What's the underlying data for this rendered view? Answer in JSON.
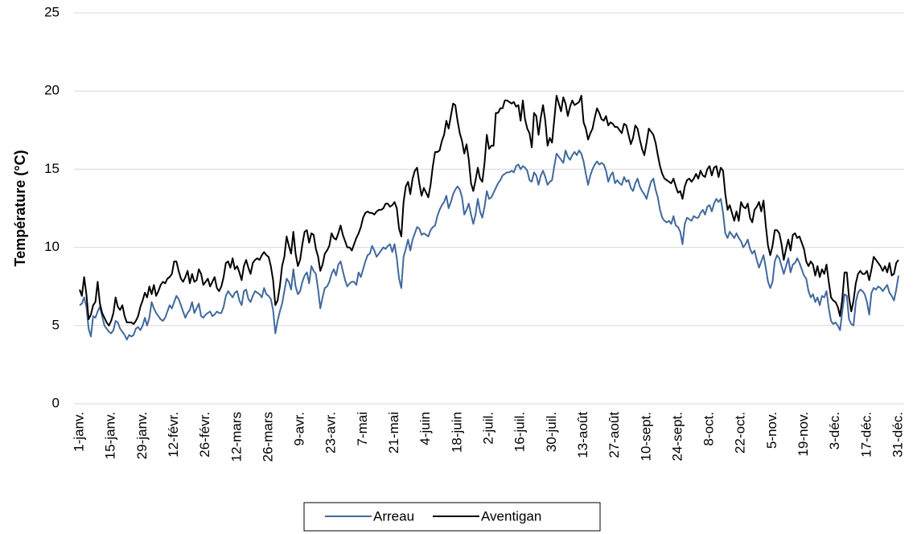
{
  "chart_data": {
    "type": "line",
    "y_label": "Température (°C)",
    "ylim": [
      0,
      25
    ],
    "yticks": [
      0,
      5,
      10,
      15,
      20,
      25
    ],
    "grid": true,
    "legend": "bottom",
    "categories": [
      "1-janv.",
      null,
      null,
      null,
      null,
      null,
      null,
      null,
      null,
      null,
      null,
      null,
      null,
      null,
      "15-janv.",
      null,
      null,
      null,
      null,
      null,
      null,
      null,
      null,
      null,
      null,
      null,
      null,
      null,
      "29-janv.",
      null,
      null,
      null,
      null,
      null,
      null,
      null,
      null,
      null,
      null,
      null,
      null,
      null,
      "12-févr.",
      null,
      null,
      null,
      null,
      null,
      null,
      null,
      null,
      null,
      null,
      null,
      null,
      null,
      "26-févr.",
      null,
      null,
      null,
      null,
      null,
      null,
      null,
      null,
      null,
      null,
      null,
      null,
      null,
      "12-mars",
      null,
      null,
      null,
      null,
      null,
      null,
      null,
      null,
      null,
      null,
      null,
      null,
      null,
      "26-mars",
      null,
      null,
      null,
      null,
      null,
      null,
      null,
      null,
      null,
      null,
      null,
      null,
      null,
      "9-avr.",
      null,
      null,
      null,
      null,
      null,
      null,
      null,
      null,
      null,
      null,
      null,
      null,
      null,
      "23-avr.",
      null,
      null,
      null,
      null,
      null,
      null,
      null,
      null,
      null,
      null,
      null,
      null,
      null,
      "7-mai",
      null,
      null,
      null,
      null,
      null,
      null,
      null,
      null,
      null,
      null,
      null,
      null,
      null,
      "21-mai",
      null,
      null,
      null,
      null,
      null,
      null,
      null,
      null,
      null,
      null,
      null,
      null,
      null,
      "4-juin",
      null,
      null,
      null,
      null,
      null,
      null,
      null,
      null,
      null,
      null,
      null,
      null,
      null,
      "18-juin",
      null,
      null,
      null,
      null,
      null,
      null,
      null,
      null,
      null,
      null,
      null,
      null,
      null,
      "2-juil.",
      null,
      null,
      null,
      null,
      null,
      null,
      null,
      null,
      null,
      null,
      null,
      null,
      null,
      "16-juil.",
      null,
      null,
      null,
      null,
      null,
      null,
      null,
      null,
      null,
      null,
      null,
      null,
      null,
      "30-juil.",
      null,
      null,
      null,
      null,
      null,
      null,
      null,
      null,
      null,
      null,
      null,
      null,
      null,
      "13-août",
      null,
      null,
      null,
      null,
      null,
      null,
      null,
      null,
      null,
      null,
      null,
      null,
      null,
      "27-août",
      null,
      null,
      null,
      null,
      null,
      null,
      null,
      null,
      null,
      null,
      null,
      null,
      null,
      "10-sept.",
      null,
      null,
      null,
      null,
      null,
      null,
      null,
      null,
      null,
      null,
      null,
      null,
      null,
      "24-sept.",
      null,
      null,
      null,
      null,
      null,
      null,
      null,
      null,
      null,
      null,
      null,
      null,
      null,
      "8-oct.",
      null,
      null,
      null,
      null,
      null,
      null,
      null,
      null,
      null,
      null,
      null,
      null,
      null,
      "22-oct.",
      null,
      null,
      null,
      null,
      null,
      null,
      null,
      null,
      null,
      null,
      null,
      null,
      null,
      "5-nov.",
      null,
      null,
      null,
      null,
      null,
      null,
      null,
      null,
      null,
      null,
      null,
      null,
      null,
      "19-nov.",
      null,
      null,
      null,
      null,
      null,
      null,
      null,
      null,
      null,
      null,
      null,
      null,
      null,
      "3-déc.",
      null,
      null,
      null,
      null,
      null,
      null,
      null,
      null,
      null,
      null,
      null,
      null,
      null,
      "17-déc.",
      null,
      null,
      null,
      null,
      null,
      null,
      null,
      null,
      null,
      null,
      null,
      null,
      null,
      "31-déc."
    ],
    "series": [
      {
        "name": "Arreau",
        "color": "#41699c",
        "values": [
          6.3,
          6.4,
          6.8,
          6.2,
          4.8,
          4.3,
          5.6,
          5.5,
          5.9,
          6.2,
          5.6,
          5.0,
          4.8,
          4.6,
          4.5,
          4.7,
          5.3,
          5.2,
          4.8,
          4.6,
          4.4,
          4.1,
          4.4,
          4.3,
          4.4,
          4.8,
          4.9,
          4.7,
          5.0,
          5.5,
          5.0,
          5.5,
          6.5,
          6.1,
          5.8,
          5.6,
          5.4,
          5.3,
          5.5,
          5.9,
          6.3,
          6.1,
          6.5,
          6.9,
          6.7,
          6.3,
          5.9,
          5.5,
          5.8,
          6.0,
          6.5,
          5.8,
          6.1,
          6.4,
          5.6,
          5.5,
          5.7,
          5.8,
          5.9,
          5.6,
          5.7,
          5.9,
          5.8,
          5.8,
          6.2,
          6.9,
          7.2,
          7.0,
          6.8,
          7.1,
          7.2,
          6.6,
          6.3,
          7.2,
          7.3,
          6.7,
          6.5,
          6.9,
          7.2,
          7.1,
          7.0,
          6.8,
          7.4,
          7.0,
          6.9,
          6.7,
          6.0,
          4.5,
          5.3,
          5.9,
          6.4,
          7.2,
          8.0,
          7.8,
          7.3,
          8.6,
          7.5,
          7.0,
          7.2,
          7.8,
          8.2,
          8.4,
          7.7,
          8.8,
          8.5,
          8.3,
          7.3,
          6.1,
          6.8,
          7.4,
          7.5,
          7.8,
          8.3,
          8.6,
          8.2,
          8.9,
          9.1,
          8.5,
          7.9,
          7.5,
          7.7,
          7.8,
          7.8,
          7.6,
          8.4,
          8.1,
          8.6,
          9.1,
          9.5,
          9.6,
          10.1,
          9.8,
          9.4,
          9.6,
          9.8,
          10.0,
          9.9,
          10.1,
          10.2,
          9.7,
          10.2,
          9.3,
          8.0,
          7.4,
          9.4,
          9.9,
          10.5,
          9.8,
          10.5,
          10.9,
          11.3,
          11.2,
          10.8,
          10.9,
          10.8,
          10.7,
          11.1,
          11.3,
          11.4,
          12.0,
          12.4,
          12.7,
          12.9,
          13.3,
          12.5,
          12.9,
          13.4,
          13.7,
          13.9,
          13.7,
          13.2,
          12.1,
          12.4,
          12.8,
          12.1,
          11.5,
          12.1,
          13.1,
          12.3,
          11.9,
          12.6,
          13.6,
          13.1,
          13.2,
          13.5,
          13.8,
          14.1,
          14.3,
          14.6,
          14.7,
          14.8,
          14.8,
          14.9,
          14.8,
          15.2,
          15.3,
          15.0,
          15.2,
          15.1,
          14.9,
          14.3,
          14.2,
          14.8,
          14.6,
          14.0,
          14.6,
          14.9,
          14.5,
          14.0,
          14.2,
          14.3,
          15.2,
          16.0,
          15.8,
          15.6,
          15.4,
          16.2,
          15.8,
          15.6,
          15.9,
          16.1,
          15.9,
          16.2,
          16.0,
          15.5,
          14.7,
          14.0,
          14.6,
          15.0,
          15.3,
          15.5,
          15.3,
          15.4,
          15.3,
          14.9,
          14.2,
          14.6,
          14.8,
          14.1,
          14.3,
          14.1,
          14.0,
          14.5,
          14.2,
          14.3,
          13.8,
          13.6,
          14.1,
          14.4,
          13.9,
          13.6,
          13.4,
          13.1,
          13.7,
          14.2,
          14.4,
          13.7,
          13.2,
          12.4,
          11.9,
          11.7,
          11.6,
          11.7,
          11.5,
          12.0,
          11.4,
          11.3,
          11.0,
          10.2,
          11.5,
          11.9,
          11.8,
          11.7,
          12.0,
          11.9,
          11.9,
          12.2,
          12.4,
          12.1,
          12.6,
          12.7,
          12.3,
          12.8,
          13.1,
          12.9,
          13.1,
          12.2,
          10.9,
          10.6,
          11.0,
          10.8,
          10.6,
          10.9,
          10.6,
          10.4,
          10.0,
          10.2,
          10.5,
          9.9,
          9.6,
          9.8,
          9.2,
          8.7,
          9.1,
          9.5,
          8.7,
          7.8,
          7.4,
          7.8,
          9.1,
          9.5,
          9.3,
          8.8,
          8.3,
          8.8,
          9.3,
          8.4,
          8.9,
          9.0,
          9.3,
          9.0,
          8.6,
          8.2,
          8.0,
          7.2,
          6.8,
          7.0,
          6.5,
          6.8,
          6.3,
          6.9,
          6.8,
          7.2,
          6.1,
          5.3,
          5.1,
          5.2,
          5.0,
          4.7,
          5.9,
          7.0,
          6.9,
          5.4,
          5.1,
          5.0,
          6.5,
          7.1,
          7.3,
          7.2,
          7.0,
          6.5,
          5.7,
          7.1,
          7.4,
          7.3,
          7.5,
          7.4,
          7.2,
          7.4,
          7.6,
          7.1,
          6.9,
          6.6,
          7.3,
          8.2
        ]
      },
      {
        "name": "Aventigan",
        "color": "#000000",
        "values": [
          7.3,
          6.9,
          8.1,
          7.0,
          5.4,
          5.7,
          6.3,
          6.5,
          7.8,
          6.4,
          5.8,
          5.5,
          5.2,
          5.0,
          5.3,
          5.8,
          6.8,
          6.2,
          6.0,
          6.3,
          5.6,
          5.2,
          5.2,
          5.2,
          5.1,
          5.3,
          5.6,
          6.2,
          6.6,
          7.1,
          6.8,
          7.5,
          7.0,
          7.6,
          6.9,
          7.2,
          7.6,
          7.8,
          7.7,
          8.0,
          8.1,
          8.3,
          9.1,
          9.1,
          8.5,
          8.0,
          7.8,
          8.1,
          8.5,
          7.7,
          8.3,
          7.8,
          7.9,
          8.6,
          8.3,
          7.6,
          7.8,
          8.0,
          7.5,
          7.8,
          8.1,
          7.4,
          7.2,
          7.5,
          8.1,
          9.0,
          9.1,
          8.7,
          9.3,
          8.6,
          8.8,
          8.4,
          7.9,
          8.8,
          9.2,
          8.7,
          8.3,
          9.0,
          9.2,
          9.3,
          9.2,
          9.5,
          9.7,
          9.5,
          9.4,
          8.8,
          7.9,
          6.3,
          6.6,
          7.5,
          8.8,
          9.4,
          10.7,
          10.1,
          9.6,
          11.0,
          9.6,
          8.8,
          9.2,
          10.2,
          11.0,
          11.1,
          10.3,
          10.9,
          10.8,
          9.9,
          9.4,
          8.5,
          8.9,
          9.6,
          9.8,
          10.1,
          10.9,
          10.6,
          10.5,
          10.9,
          11.4,
          10.8,
          10.4,
          10.0,
          10.0,
          9.8,
          10.2,
          10.6,
          10.9,
          11.3,
          11.9,
          12.2,
          12.3,
          12.2,
          12.2,
          12.1,
          12.3,
          12.4,
          12.4,
          12.5,
          12.8,
          12.8,
          12.6,
          12.7,
          12.9,
          12.5,
          11.2,
          10.7,
          12.9,
          13.9,
          14.2,
          13.4,
          14.4,
          14.9,
          15.1,
          14.1,
          13.3,
          13.8,
          13.5,
          13.2,
          14.0,
          15.2,
          16.1,
          16.1,
          16.2,
          16.8,
          17.2,
          18.1,
          17.6,
          18.4,
          19.2,
          19.1,
          18.1,
          17.3,
          16.8,
          16.0,
          16.6,
          15.6,
          14.1,
          13.6,
          14.3,
          15.1,
          14.4,
          14.2,
          15.4,
          17.2,
          16.3,
          16.5,
          16.5,
          18.6,
          18.6,
          18.9,
          18.9,
          19.4,
          19.4,
          19.3,
          19.2,
          19.3,
          19.0,
          19.1,
          18.1,
          19.4,
          18.2,
          17.6,
          17.3,
          16.4,
          18.6,
          18.4,
          17.2,
          18.3,
          19.1,
          18.1,
          16.5,
          17.0,
          16.7,
          18.2,
          19.7,
          19.2,
          18.7,
          19.6,
          19.2,
          18.4,
          19.0,
          19.4,
          19.1,
          19.2,
          19.3,
          19.7,
          18.0,
          17.6,
          16.9,
          17.3,
          17.6,
          18.3,
          18.9,
          18.6,
          18.2,
          18.1,
          18.4,
          17.8,
          18.0,
          17.9,
          17.7,
          17.7,
          17.5,
          17.3,
          17.9,
          17.8,
          17.2,
          16.6,
          17.0,
          17.8,
          17.6,
          16.9,
          16.3,
          15.9,
          16.7,
          17.6,
          17.4,
          17.2,
          16.7,
          15.9,
          15.2,
          14.7,
          14.4,
          14.3,
          14.2,
          14.1,
          14.4,
          13.9,
          13.5,
          13.6,
          13.1,
          13.9,
          14.3,
          14.4,
          14.2,
          14.4,
          14.7,
          14.4,
          14.9,
          14.6,
          14.5,
          15.0,
          15.2,
          14.6,
          15.1,
          15.2,
          14.5,
          15.1,
          14.9,
          13.4,
          12.4,
          12.7,
          12.2,
          11.7,
          12.3,
          11.7,
          12.9,
          12.6,
          12.5,
          12.8,
          11.9,
          11.6,
          12.4,
          12.6,
          12.9,
          12.3,
          13.0,
          11.4,
          10.1,
          9.5,
          10.1,
          11.1,
          11.1,
          10.9,
          10.2,
          9.2,
          9.9,
          10.5,
          9.8,
          10.8,
          10.9,
          10.6,
          10.7,
          10.3,
          9.9,
          9.1,
          8.8,
          9.1,
          8.9,
          8.2,
          8.8,
          8.1,
          8.6,
          8.3,
          8.9,
          7.8,
          6.8,
          6.6,
          6.5,
          6.2,
          5.6,
          6.7,
          8.4,
          8.4,
          6.8,
          5.9,
          6.6,
          7.7,
          8.3,
          8.5,
          8.3,
          8.3,
          8.5,
          7.9,
          8.6,
          9.4,
          9.2,
          9.0,
          8.8,
          8.5,
          8.8,
          8.4,
          9.0,
          8.2,
          8.3,
          9.0,
          9.2
        ]
      }
    ]
  }
}
